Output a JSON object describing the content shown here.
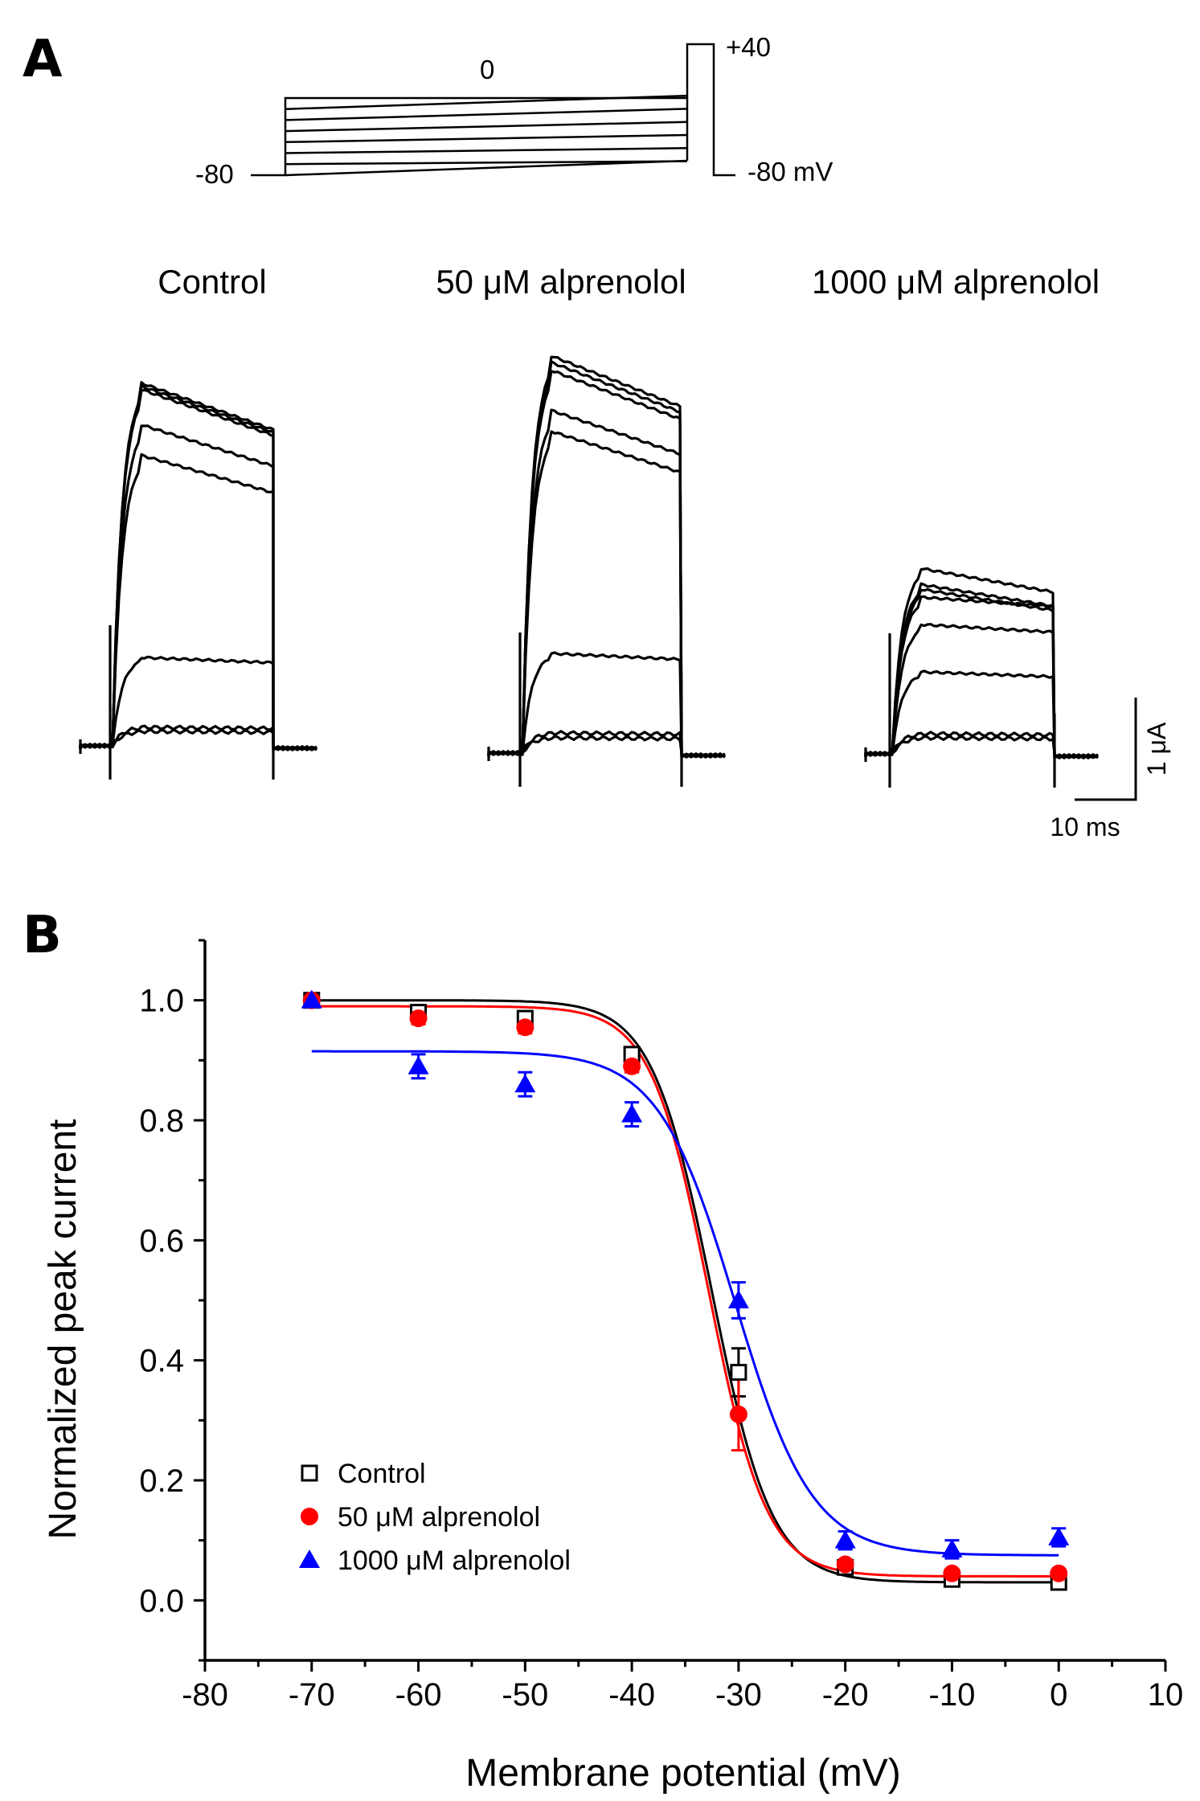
{
  "panels": {
    "a": {
      "letter": "A",
      "protocol": {
        "hold_label": "-80",
        "step_label": "0",
        "prepulse_label": "+40",
        "return_label": "-80 mV"
      },
      "conditions": [
        {
          "label": "Control"
        },
        {
          "label": "50 μM alprenolol"
        },
        {
          "label": "1000 μM alprenolol"
        }
      ],
      "scale_bar": {
        "time_label": "10 ms",
        "current_label": "1 μA"
      }
    },
    "b": {
      "letter": "B"
    }
  },
  "chart_data": {
    "type": "scatter",
    "title": "",
    "xlabel": "Membrane potential (mV)",
    "ylabel": "Normalized peak current",
    "xlim": [
      -80,
      10
    ],
    "ylim": [
      -0.1,
      1.1
    ],
    "x_ticks": [
      "-80",
      "-70",
      "-60",
      "-50",
      "-40",
      "-30",
      "-20",
      "-10",
      "0",
      "10"
    ],
    "y_ticks": [
      "0.0",
      "0.2",
      "0.4",
      "0.6",
      "0.8",
      "1.0"
    ],
    "legend_position": "bottom-left",
    "grid": false,
    "x": [
      -70,
      -60,
      -50,
      -40,
      -30,
      -20,
      -10,
      0
    ],
    "series": [
      {
        "name": "Control",
        "marker": "open-square",
        "color": "#000000",
        "values": [
          1.0,
          0.98,
          0.97,
          0.91,
          0.38,
          0.055,
          0.035,
          0.03
        ],
        "errors": [
          0.01,
          0.01,
          0.01,
          0.01,
          0.04,
          0.005,
          0.005,
          0.005
        ],
        "fit": {
          "bottom": 0.03,
          "top": 1.0,
          "v_half": -32.5,
          "slope": 2.8
        }
      },
      {
        "name": "50 μM alprenolol",
        "marker": "filled-circle",
        "color": "#ff0000",
        "values": [
          1.0,
          0.97,
          0.955,
          0.89,
          0.31,
          0.06,
          0.045,
          0.045
        ],
        "errors": [
          0.01,
          0.01,
          0.01,
          0.01,
          0.06,
          0.005,
          0.005,
          0.005
        ],
        "fit": {
          "bottom": 0.04,
          "top": 0.99,
          "v_half": -32.8,
          "slope": 2.7
        }
      },
      {
        "name": "1000 μM alprenolol",
        "marker": "filled-triangle",
        "color": "#0000ff",
        "values": [
          1.0,
          0.89,
          0.86,
          0.81,
          0.5,
          0.1,
          0.085,
          0.105
        ],
        "errors": [
          0.01,
          0.02,
          0.02,
          0.02,
          0.03,
          0.015,
          0.015,
          0.015
        ],
        "fit": {
          "bottom": 0.075,
          "top": 0.915,
          "v_half": -30.3,
          "slope": 3.6
        }
      }
    ]
  }
}
